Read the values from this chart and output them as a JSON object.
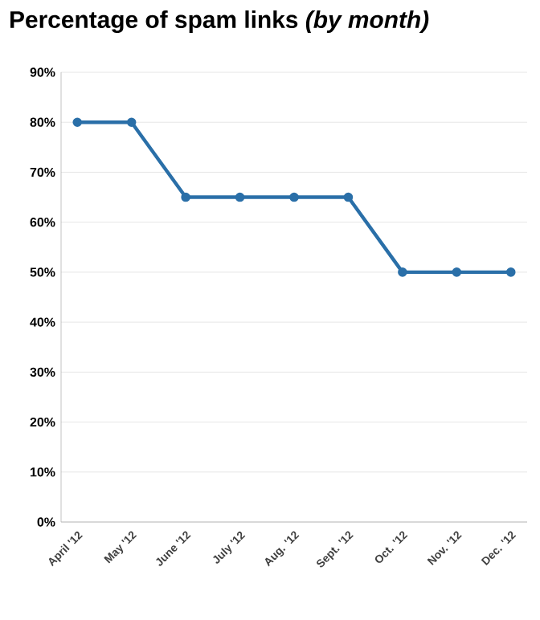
{
  "chart_data": {
    "type": "line",
    "title": "Percentage of spam links *(by month)*",
    "categories": [
      "April '12",
      "May '12",
      "June '12",
      "July '12",
      "Aug. '12",
      "Sept. '12",
      "Oct. '12",
      "Nov. '12",
      "Dec. '12"
    ],
    "series": [
      {
        "color": "#2a6fa8",
        "values": [
          80,
          80,
          65,
          65,
          65,
          65,
          50,
          50,
          50
        ]
      }
    ],
    "ylim": [
      0,
      90
    ],
    "yticks": [
      {
        "value": 0,
        "label": "0%"
      },
      {
        "value": 10,
        "label": "10%"
      },
      {
        "value": 20,
        "label": "20%"
      },
      {
        "value": 30,
        "label": "30%"
      },
      {
        "value": 40,
        "label": "40%"
      },
      {
        "value": 50,
        "label": "50%"
      },
      {
        "value": 60,
        "label": "60%"
      },
      {
        "value": 70,
        "label": "70%"
      },
      {
        "value": 80,
        "label": "80%"
      },
      {
        "value": 90,
        "label": "90%"
      }
    ],
    "grid": "y",
    "marker": "circle",
    "line_style": "solid"
  }
}
